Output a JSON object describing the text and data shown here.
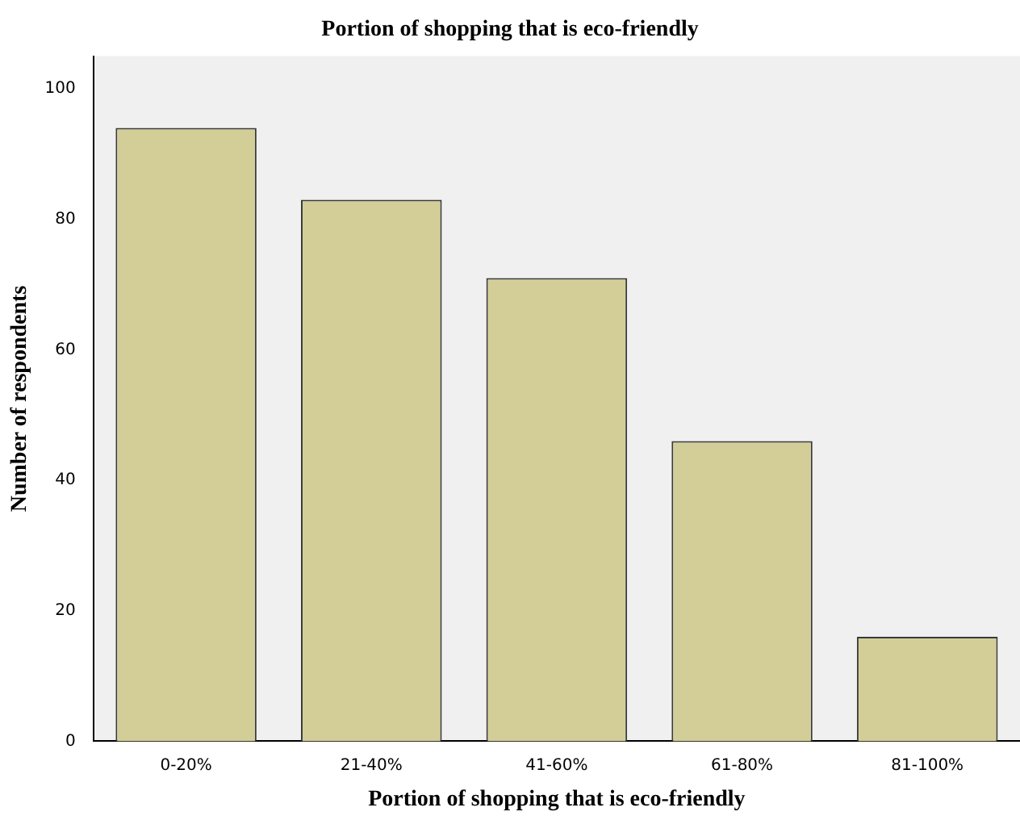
{
  "chart_data": {
    "type": "bar",
    "title": "Portion of shopping that is eco-friendly",
    "xlabel": "Portion of shopping that is eco-friendly",
    "ylabel": "Number of respondents",
    "categories": [
      "0-20%",
      "21-40%",
      "41-60%",
      "61-80%",
      "81-100%"
    ],
    "values": [
      94,
      83,
      71,
      46,
      16
    ],
    "color": "#d3ce98",
    "ylim": [
      0,
      105
    ],
    "yticks": [
      0,
      20,
      40,
      60,
      80,
      100
    ],
    "grid": false,
    "legend": false
  }
}
